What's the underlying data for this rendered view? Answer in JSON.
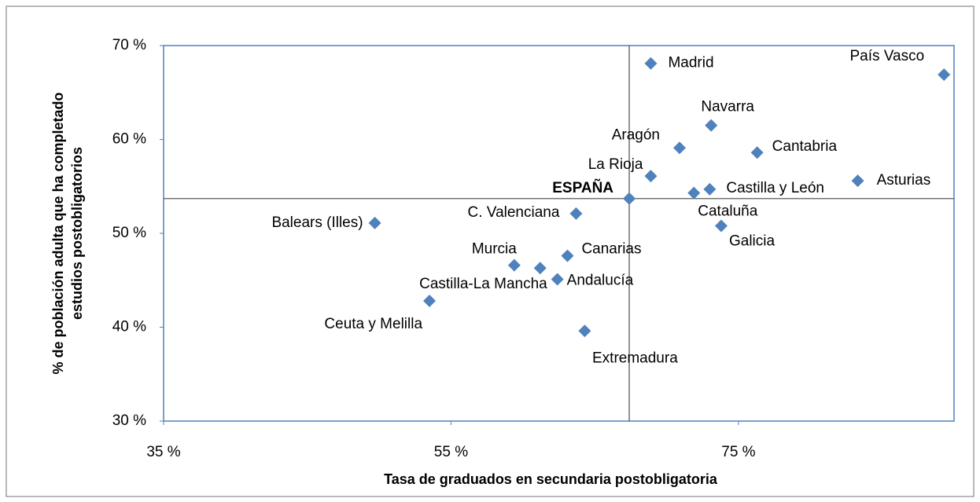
{
  "chart_data": {
    "type": "scatter",
    "xlabel": "Tasa de graduados en secundaria postobligatoria",
    "ylabel": [
      "% de población adulta que ha completado",
      "estudios postobligatorios"
    ],
    "labels": [
      "Madrid",
      "País Vasco",
      "Navarra",
      "Aragón",
      "Cantabria",
      "La Rioja",
      "Asturias",
      "Castilla y León",
      "Cataluña",
      "ESPAÑA",
      "C. Valenciana",
      "Balears (Illes)",
      "Galicia",
      "Canarias",
      "Murcia",
      "Castilla-La Mancha",
      "Andalucía",
      "Ceuta y Melilla",
      "Extremadura"
    ],
    "x": [
      68.9,
      89.3,
      73.1,
      70.9,
      76.3,
      68.9,
      83.3,
      73.0,
      71.9,
      67.4,
      63.7,
      49.7,
      73.8,
      63.1,
      59.4,
      61.2,
      62.4,
      53.5,
      64.3
    ],
    "y": [
      68.1,
      66.9,
      61.5,
      59.1,
      58.6,
      56.1,
      55.6,
      54.7,
      54.3,
      53.7,
      52.1,
      51.1,
      50.8,
      47.6,
      46.6,
      46.3,
      45.1,
      42.8,
      39.6
    ],
    "color": "#4f81bd",
    "reference": "ESPAÑA",
    "xlim": [
      35,
      90
    ],
    "ylim": [
      30,
      70
    ],
    "xticks": [
      {
        "value": 35,
        "label": "35 %"
      },
      {
        "value": 55,
        "label": "55 %"
      },
      {
        "value": 75,
        "label": "75 %"
      }
    ],
    "yticks": [
      {
        "value": 30,
        "label": "30 %"
      },
      {
        "value": 40,
        "label": "40 %"
      },
      {
        "value": 50,
        "label": "50 %"
      },
      {
        "value": 60,
        "label": "60 %"
      },
      {
        "value": 70,
        "label": "70 %"
      }
    ]
  }
}
